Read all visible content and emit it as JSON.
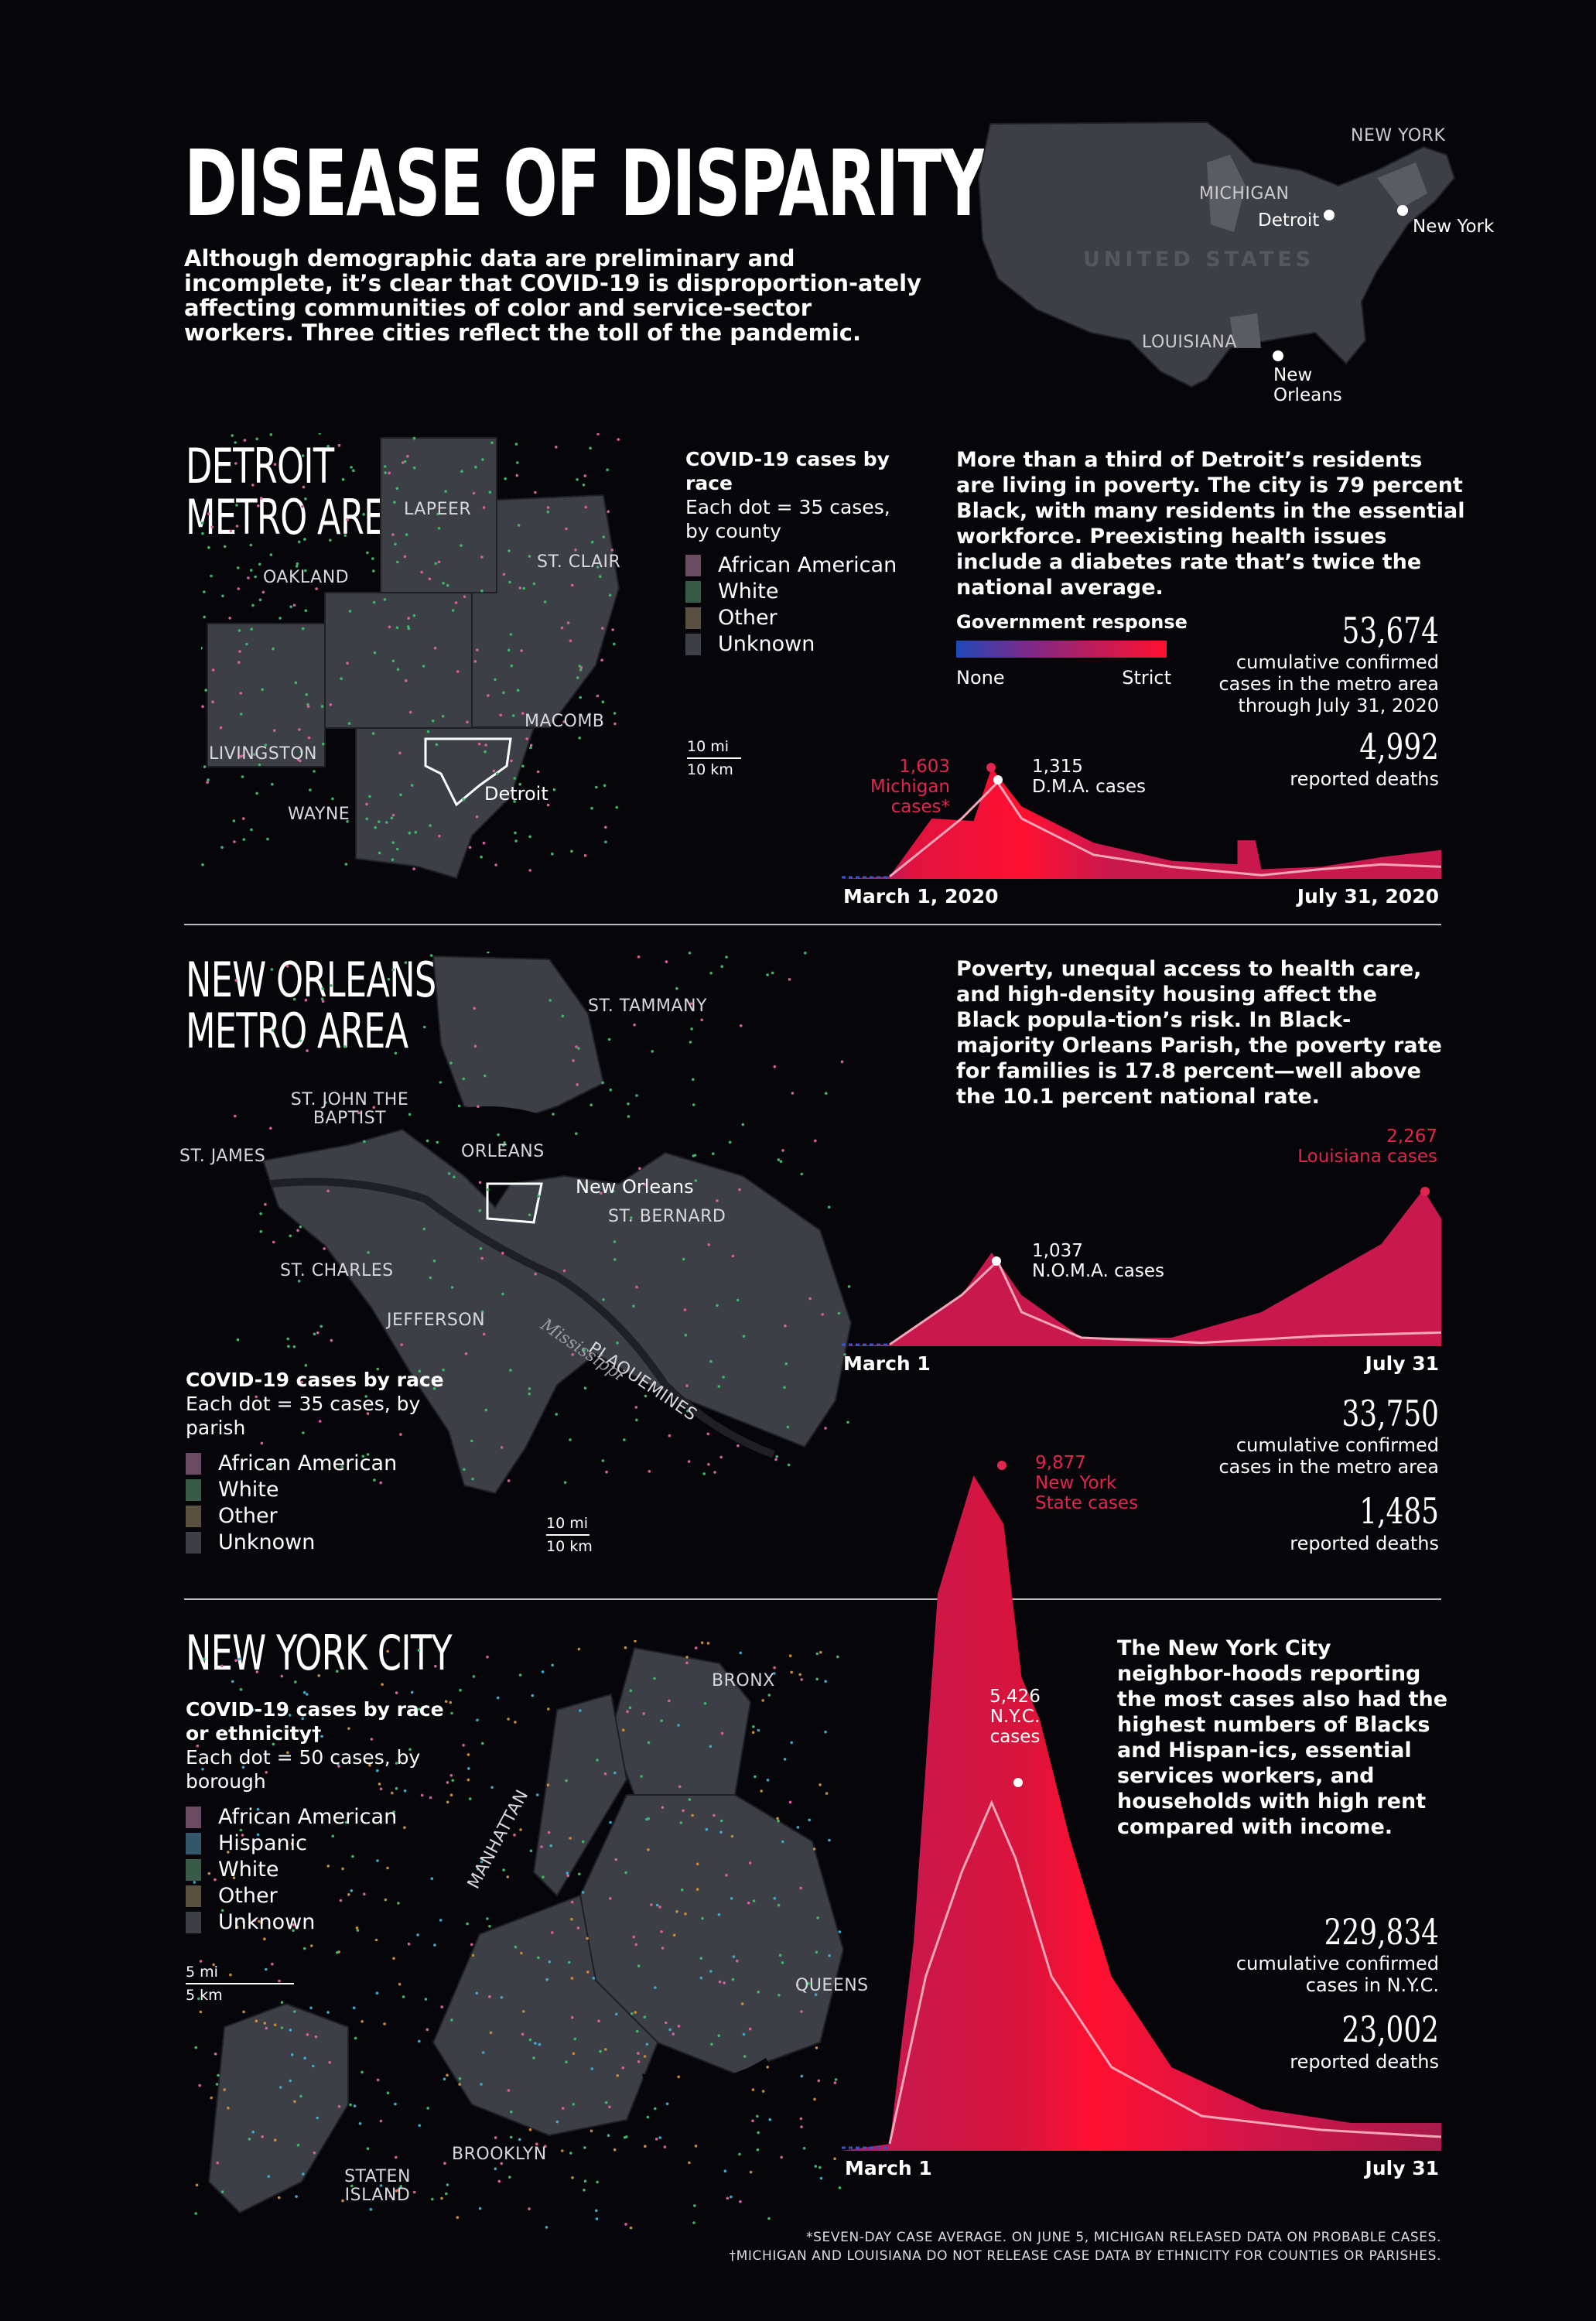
{
  "header": {
    "title": "DISEASE OF DISPARITY",
    "lead": "Although demographic data are preliminary and incomplete, it’s clear that COVID-19 is disproportion-ately affecting communities of color and service-sector workers. Three cities reflect the toll of the pandemic."
  },
  "us_map": {
    "country": "UNITED STATES",
    "states": [
      "NEW YORK",
      "MICHIGAN",
      "LOUISIANA"
    ],
    "cities": [
      "Detroit",
      "New York",
      "New Orleans"
    ]
  },
  "legend_gov": {
    "title": "Government response",
    "min": "None",
    "max": "Strict",
    "colors": [
      "#1f49b8",
      "#7b2a8a",
      "#e01040",
      "#ff1030"
    ]
  },
  "detroit": {
    "title_lines": [
      "DETROIT",
      "METRO AREA"
    ],
    "legend_title": "COVID-19 cases by race",
    "legend_sub": "Each dot = 35 cases, by county",
    "legend": [
      "African American",
      "White",
      "Other",
      "Unknown"
    ],
    "counties": [
      "LAPEER",
      "ST. CLAIR",
      "OAKLAND",
      "MACOMB",
      "LIVINGSTON",
      "WAYNE"
    ],
    "city": "Detroit",
    "scale_mi": "10 mi",
    "scale_km": "10 km",
    "para": "More than a third of Detroit’s residents are living in poverty. The city is 79 percent Black, with many residents in the essential workforce. Preexisting health issues include a diabetes rate that’s twice the national average.",
    "cases": "53,674",
    "cases_label": "cumulative confirmed cases in the metro area through July 31, 2020",
    "deaths": "4,992",
    "deaths_label": "reported deaths",
    "peak_state_value": "1,603",
    "peak_state_label": "Michigan cases*",
    "peak_local_value": "1,315",
    "peak_local_label": "D.M.A. cases",
    "x_start": "March 1, 2020",
    "x_end": "July 31, 2020"
  },
  "new_orleans": {
    "title_lines": [
      "NEW ORLEANS",
      "METRO AREA"
    ],
    "legend_title": "COVID-19 cases by race",
    "legend_sub": "Each dot = 35 cases, by parish",
    "legend": [
      "African American",
      "White",
      "Other",
      "Unknown"
    ],
    "parishes": [
      "ST. TAMMANY",
      "ST. JOHN THE BAPTIST",
      "ST. JAMES",
      "ORLEANS",
      "ST. BERNARD",
      "ST. CHARLES",
      "JEFFERSON",
      "PLAQUEMINES",
      "Mississippi"
    ],
    "city": "New Orleans",
    "scale_mi": "10 mi",
    "scale_km": "10 km",
    "para": "Poverty, unequal access to health care, and high-density housing affect the Black popula-tion’s risk. In Black-majority Orleans Parish, the poverty rate for families is 17.8 percent—well above the 10.1 percent national rate.",
    "cases": "33,750",
    "cases_label": "cumulative confirmed cases in the metro area",
    "deaths": "1,485",
    "deaths_label": "reported deaths",
    "peak_state_value": "2,267",
    "peak_state_label": "Louisiana cases",
    "peak_local_value": "1,037",
    "peak_local_label": "N.O.M.A. cases",
    "x_start": "March 1",
    "x_end": "July 31"
  },
  "nyc": {
    "title": "NEW YORK CITY",
    "legend_title": "COVID-19 cases by race or ethnicity†",
    "legend_sub": "Each dot = 50 cases, by borough",
    "legend": [
      "African American",
      "Hispanic",
      "White",
      "Other",
      "Unknown"
    ],
    "boroughs": [
      "BRONX",
      "MANHATTAN",
      "QUEENS",
      "BROOKLYN",
      "STATEN ISLAND"
    ],
    "scale_mi": "5 mi",
    "scale_km": "5 km",
    "para": "The New York City neighbor-hoods reporting the most cases also had the highest numbers of Blacks and Hispan-ics, essential services workers, and households with high rent compared with income.",
    "cases": "229,834",
    "cases_label": "cumulative confirmed cases in N.Y.C.",
    "deaths": "23,002",
    "deaths_label": "reported deaths",
    "peak_state_value": "9,877",
    "peak_state_label": "New York State cases",
    "peak_local_value": "5,426",
    "peak_local_label": "N.Y.C. cases",
    "x_start": "March 1",
    "x_end": "July 31"
  },
  "legend_colors": {
    "African American": "#d65fa0",
    "Hispanic": "#3fa7c9",
    "White": "#3fb36a",
    "Other": "#c48a3a",
    "Unknown": "#3d3f46"
  },
  "footnotes": [
    "*SEVEN-DAY CASE AVERAGE. ON JUNE 5, MICHIGAN RELEASED DATA ON PROBABLE CASES.",
    "†MICHIGAN AND LOUISIANA DO NOT RELEASE CASE DATA BY ETHNICITY FOR COUNTIES OR PARISHES."
  ]
}
